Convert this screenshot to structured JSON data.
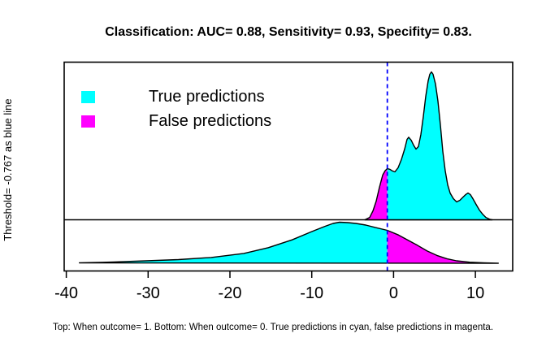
{
  "title": "Classification: AUC= 0.88, Sensitivity= 0.93, Specifity= 0.83.",
  "y_axis_label": "Threshold= -0.767 as blue line",
  "caption": "Top: When outcome= 1. Bottom: When outcome= 0. True predictions in cyan, false predictions in magenta.",
  "legend": {
    "items": [
      {
        "label": "True predictions",
        "color": "#00FFFF"
      },
      {
        "label": "False predictions",
        "color": "#FF00FF"
      }
    ]
  },
  "colors": {
    "true_predictions": "#00FFFF",
    "false_predictions": "#FF00FF",
    "threshold_line": "#0000FF",
    "frame": "#000000"
  },
  "chart_data": {
    "type": "area",
    "title": "Classification: AUC= 0.88, Sensitivity= 0.93, Specifity= 0.83.",
    "xlabel": "",
    "ylabel": "Threshold= -0.767 as blue line",
    "auc": 0.88,
    "sensitivity": 0.93,
    "specificity": 0.83,
    "threshold": -0.767,
    "x_ticks": [
      -40,
      -30,
      -20,
      -10,
      0,
      10
    ],
    "xlim": [
      -40.3,
      14.6
    ],
    "grid": false,
    "legend_position": "top-left",
    "panels": [
      {
        "name": "density-when-outcome-1",
        "panel_label": "Top: When outcome= 1",
        "true_side": "right",
        "units": "relative density (max = 1)",
        "points": [
          [
            -3.52,
            0
          ],
          [
            -2.92,
            0.016
          ],
          [
            -2.52,
            0.06
          ],
          [
            -2.13,
            0.126
          ],
          [
            -1.73,
            0.22
          ],
          [
            -1.33,
            0.302
          ],
          [
            -1.03,
            0.332
          ],
          [
            -0.767,
            0.346
          ],
          [
            -0.44,
            0.341
          ],
          [
            -0.14,
            0.33
          ],
          [
            0.16,
            0.324
          ],
          [
            0.56,
            0.352
          ],
          [
            0.95,
            0.407
          ],
          [
            1.35,
            0.478
          ],
          [
            1.65,
            0.544
          ],
          [
            1.85,
            0.558
          ],
          [
            2.15,
            0.538
          ],
          [
            2.44,
            0.505
          ],
          [
            2.74,
            0.478
          ],
          [
            3.04,
            0.495
          ],
          [
            3.34,
            0.577
          ],
          [
            3.63,
            0.698
          ],
          [
            3.93,
            0.835
          ],
          [
            4.23,
            0.94
          ],
          [
            4.43,
            0.984
          ],
          [
            4.63,
            1.0
          ],
          [
            4.83,
            0.984
          ],
          [
            5.12,
            0.918
          ],
          [
            5.42,
            0.802
          ],
          [
            5.72,
            0.643
          ],
          [
            6.02,
            0.462
          ],
          [
            6.32,
            0.33
          ],
          [
            6.61,
            0.236
          ],
          [
            6.91,
            0.181
          ],
          [
            7.31,
            0.143
          ],
          [
            7.71,
            0.121
          ],
          [
            8.1,
            0.132
          ],
          [
            8.5,
            0.154
          ],
          [
            8.8,
            0.17
          ],
          [
            9.1,
            0.181
          ],
          [
            9.39,
            0.17
          ],
          [
            9.69,
            0.143
          ],
          [
            10.09,
            0.104
          ],
          [
            10.49,
            0.066
          ],
          [
            10.88,
            0.038
          ],
          [
            11.28,
            0.016
          ],
          [
            11.78,
            0.003
          ],
          [
            12.07,
            0
          ]
        ]
      },
      {
        "name": "density-when-outcome-0",
        "panel_label": "Bottom: When outcome= 0",
        "true_side": "left",
        "units": "relative density (max = 1)",
        "points": [
          [
            -38.4,
            0.01
          ],
          [
            -34.2,
            0.03
          ],
          [
            -30.2,
            0.06
          ],
          [
            -26.3,
            0.09
          ],
          [
            -22.3,
            0.14
          ],
          [
            -18.3,
            0.24
          ],
          [
            -15.3,
            0.38
          ],
          [
            -12.4,
            0.57
          ],
          [
            -9.9,
            0.78
          ],
          [
            -8.4,
            0.9
          ],
          [
            -7.4,
            0.97
          ],
          [
            -6.6,
            1.0
          ],
          [
            -5.6,
            0.99
          ],
          [
            -4.6,
            0.97
          ],
          [
            -3.4,
            0.93
          ],
          [
            -2.2,
            0.87
          ],
          [
            -0.767,
            0.802
          ],
          [
            0.6,
            0.69
          ],
          [
            1.7,
            0.57
          ],
          [
            2.9,
            0.44
          ],
          [
            4.1,
            0.3
          ],
          [
            5.3,
            0.19
          ],
          [
            6.5,
            0.11
          ],
          [
            7.7,
            0.06
          ],
          [
            9.3,
            0.026
          ],
          [
            11.0,
            0.01
          ],
          [
            12.8,
            0
          ]
        ]
      }
    ]
  }
}
